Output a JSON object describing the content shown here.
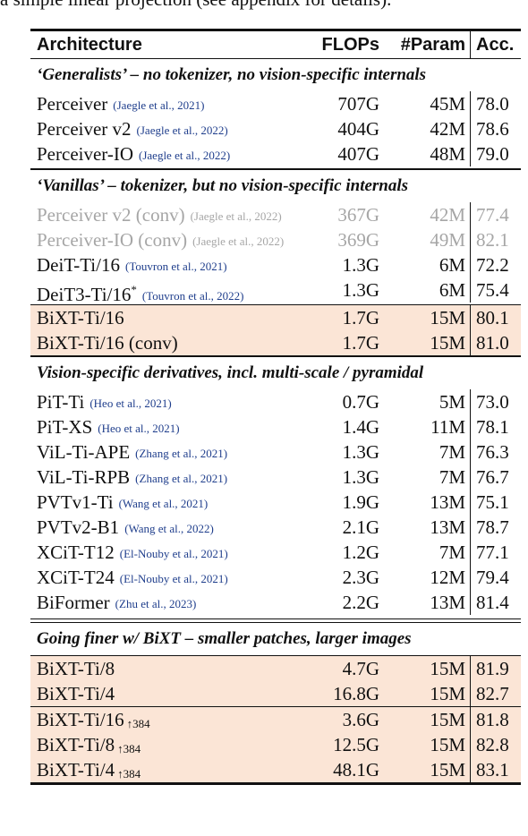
{
  "top_text": "a simple linear projection (see appendix for details).",
  "header": {
    "arch": "Architecture",
    "flops": "FLOPs",
    "param": "#Param",
    "acc": "Acc."
  },
  "sections": [
    {
      "title": "‘Generalists’ – no tokenizer, no vision-specific internals",
      "rows": [
        {
          "name": "Perceiver",
          "cite": "(Jaegle et al., 2021)",
          "flops": "707G",
          "param": "45M",
          "acc": "78.0"
        },
        {
          "name": "Perceiver v2",
          "cite": "(Jaegle et al., 2022)",
          "flops": "404G",
          "param": "42M",
          "acc": "78.6"
        },
        {
          "name": "Perceiver-IO",
          "cite": "(Jaegle et al., 2022)",
          "flops": "407G",
          "param": "48M",
          "acc": "79.0"
        }
      ]
    },
    {
      "title": "‘Vanillas’ – tokenizer, but no vision-specific internals",
      "rows": [
        {
          "name": "Perceiver v2 (conv)",
          "cite": "(Jaegle et al., 2022)",
          "flops": "367G",
          "param": "42M",
          "acc": "77.4"
        },
        {
          "name": "Perceiver-IO (conv)",
          "cite": "(Jaegle et al., 2022)",
          "flops": "369G",
          "param": "49M",
          "acc": "82.1"
        },
        {
          "name": "DeiT-Ti/16",
          "cite": "(Touvron et al., 2021)",
          "flops": "1.3G",
          "param": "6M",
          "acc": "72.2"
        },
        {
          "name": "DeiT3-Ti/16",
          "sup": "*",
          "cite": "(Touvron et al., 2022)",
          "flops": "1.3G",
          "param": "6M",
          "acc": "75.4"
        },
        {
          "name": "BiXT-Ti/16",
          "flops": "1.7G",
          "param": "15M",
          "acc": "80.1"
        },
        {
          "name": "BiXT-Ti/16 (conv)",
          "flops": "1.7G",
          "param": "15M",
          "acc": "81.0"
        }
      ]
    },
    {
      "title": "Vision-specific derivatives, incl. multi-scale / pyramidal",
      "rows": [
        {
          "name": "PiT-Ti",
          "cite": "(Heo et al., 2021)",
          "flops": "0.7G",
          "param": "5M",
          "acc": "73.0"
        },
        {
          "name": "PiT-XS",
          "cite": "(Heo et al., 2021)",
          "flops": "1.4G",
          "param": "11M",
          "acc": "78.1"
        },
        {
          "name": "ViL-Ti-APE",
          "cite": "(Zhang et al., 2021)",
          "flops": "1.3G",
          "param": "7M",
          "acc": "76.3"
        },
        {
          "name": "ViL-Ti-RPB",
          "cite": "(Zhang et al., 2021)",
          "flops": "1.3G",
          "param": "7M",
          "acc": "76.7"
        },
        {
          "name": "PVTv1-Ti",
          "cite": "(Wang et al., 2021)",
          "flops": "1.9G",
          "param": "13M",
          "acc": "75.1"
        },
        {
          "name": "PVTv2-B1",
          "cite": "(Wang et al., 2022)",
          "flops": "2.1G",
          "param": "13M",
          "acc": "78.7"
        },
        {
          "name": "XCiT-T12",
          "cite": "(El-Nouby et al., 2021)",
          "flops": "1.2G",
          "param": "7M",
          "acc": "77.1"
        },
        {
          "name": "XCiT-T24",
          "cite": "(El-Nouby et al., 2021)",
          "flops": "2.3G",
          "param": "12M",
          "acc": "79.4"
        },
        {
          "name": "BiFormer",
          "cite": "(Zhu et al., 2023)",
          "flops": "2.2G",
          "param": "13M",
          "acc": "81.4"
        }
      ]
    },
    {
      "title": "Going finer w/ BiXT – smaller patches, larger images",
      "rows": [
        {
          "name": "BiXT-Ti/8",
          "flops": "4.7G",
          "param": "15M",
          "acc": "81.9"
        },
        {
          "name": "BiXT-Ti/4",
          "flops": "16.8G",
          "param": "15M",
          "acc": "82.7"
        },
        {
          "name": "BiXT-Ti/16",
          "sub": "↑384",
          "flops": "3.6G",
          "param": "15M",
          "acc": "81.8"
        },
        {
          "name": "BiXT-Ti/8",
          "sub": "↑384",
          "flops": "12.5G",
          "param": "15M",
          "acc": "82.8"
        },
        {
          "name": "BiXT-Ti/4",
          "sub": "↑384",
          "flops": "48.1G",
          "param": "15M",
          "acc": "83.1"
        }
      ]
    }
  ],
  "colors": {
    "highlight": "#fbe5d6",
    "citation": "#1f3e8c",
    "gray_row": "#a6a6a6"
  }
}
